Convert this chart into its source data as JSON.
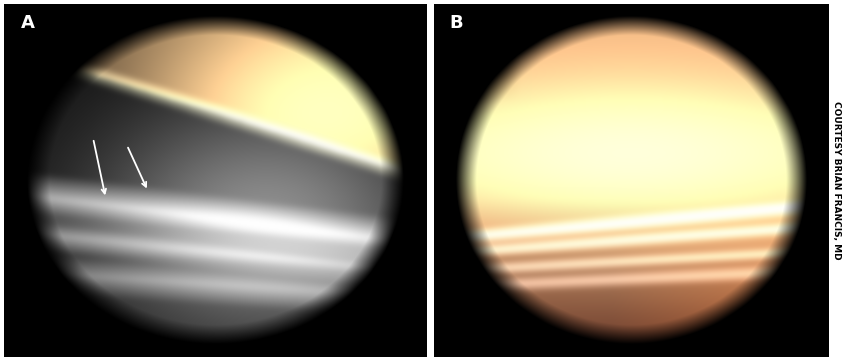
{
  "fig_width": 8.54,
  "fig_height": 3.61,
  "dpi": 100,
  "background_color": "#ffffff",
  "label_A": "A",
  "label_B": "B",
  "label_color": "#ffffff",
  "label_fontsize": 13,
  "label_fontweight": "bold",
  "watermark_text": "COURTESY BRIAN FRANCIS, MD",
  "watermark_color": "#000000",
  "watermark_fontsize": 6.5,
  "arrow_color": "#ffffff",
  "panel_A_bg": "#000000",
  "panel_B_bg": "#000000"
}
